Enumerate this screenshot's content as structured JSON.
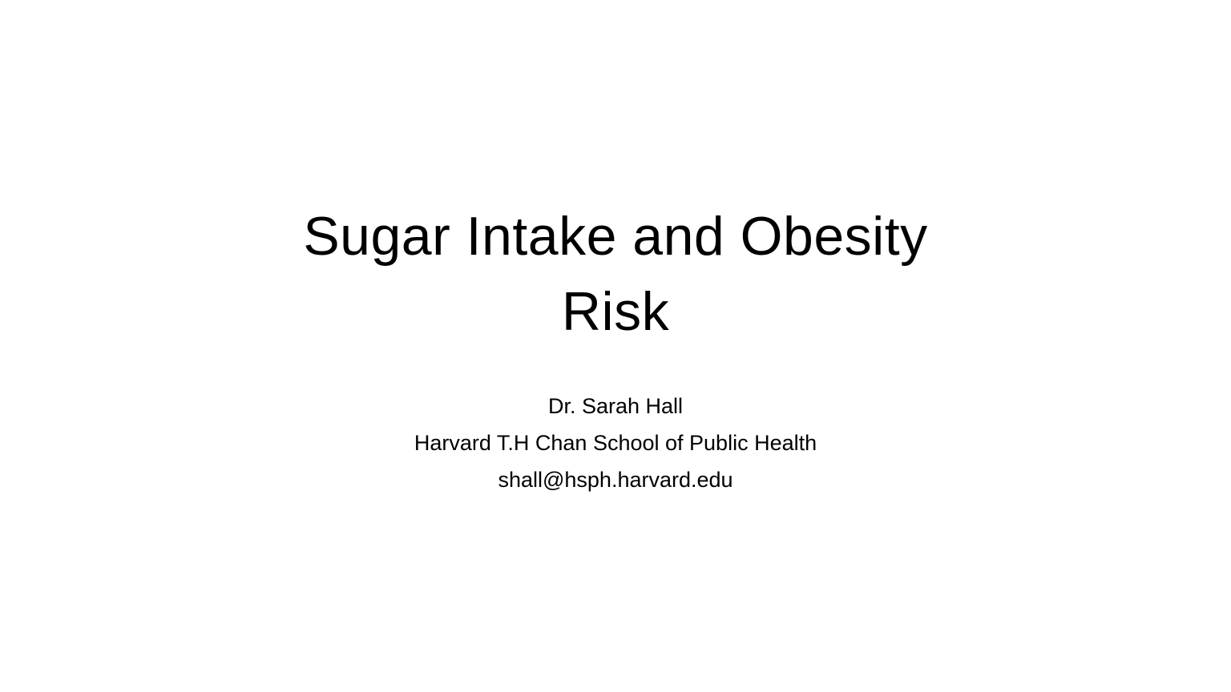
{
  "slide": {
    "title_lines": [
      "Sugar Intake and Obesity",
      "Risk"
    ],
    "subtitle_lines": [
      "Dr. Sarah Hall",
      "Harvard T.H Chan School of Public Health",
      "shall@hsph.harvard.edu"
    ]
  }
}
